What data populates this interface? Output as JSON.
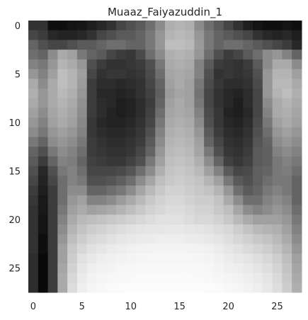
{
  "chart_data": {
    "type": "heatmap",
    "title": "Muaaz_Faiyazuddin_1",
    "xlabel": "",
    "ylabel": "",
    "colormap": "gray",
    "grid": false,
    "rows": 28,
    "cols": 28,
    "x_ticks": [
      0,
      5,
      10,
      15,
      20,
      25
    ],
    "y_ticks": [
      0,
      5,
      10,
      15,
      20,
      25
    ],
    "x_tick_labels": [
      "0",
      "5",
      "10",
      "15",
      "20",
      "25"
    ],
    "y_tick_labels": [
      "0",
      "5",
      "10",
      "15",
      "20",
      "25"
    ],
    "xlim": [
      -0.5,
      27.5
    ],
    "ylim": [
      27.5,
      -0.5
    ],
    "vmin": 0,
    "vmax": 255,
    "values": [
      [
        50,
        50,
        15,
        15,
        20,
        22,
        30,
        40,
        50,
        70,
        80,
        90,
        110,
        140,
        175,
        180,
        175,
        140,
        110,
        90,
        70,
        50,
        30,
        20,
        15,
        15,
        20,
        15
      ],
      [
        70,
        60,
        40,
        35,
        35,
        40,
        50,
        70,
        80,
        90,
        90,
        100,
        120,
        150,
        180,
        185,
        180,
        150,
        120,
        100,
        90,
        80,
        70,
        50,
        40,
        35,
        40,
        30
      ],
      [
        100,
        80,
        70,
        70,
        80,
        90,
        90,
        100,
        110,
        110,
        100,
        100,
        120,
        150,
        190,
        190,
        185,
        155,
        120,
        100,
        110,
        110,
        100,
        90,
        80,
        70,
        60,
        40
      ],
      [
        110,
        100,
        140,
        170,
        160,
        120,
        100,
        90,
        70,
        60,
        55,
        75,
        110,
        140,
        175,
        180,
        175,
        150,
        110,
        80,
        60,
        70,
        90,
        110,
        140,
        150,
        130,
        100
      ],
      [
        130,
        120,
        150,
        180,
        170,
        150,
        80,
        60,
        50,
        50,
        55,
        60,
        80,
        120,
        170,
        175,
        170,
        130,
        90,
        60,
        55,
        50,
        60,
        90,
        140,
        170,
        170,
        140
      ],
      [
        150,
        130,
        160,
        190,
        180,
        160,
        70,
        50,
        55,
        55,
        50,
        55,
        75,
        110,
        165,
        170,
        165,
        130,
        80,
        50,
        55,
        50,
        55,
        80,
        150,
        180,
        180,
        160
      ],
      [
        170,
        140,
        170,
        190,
        180,
        155,
        60,
        45,
        45,
        40,
        45,
        50,
        70,
        100,
        160,
        170,
        160,
        120,
        75,
        55,
        45,
        45,
        50,
        75,
        150,
        185,
        185,
        170
      ],
      [
        175,
        150,
        170,
        185,
        175,
        150,
        60,
        40,
        40,
        35,
        40,
        50,
        65,
        95,
        155,
        165,
        160,
        115,
        70,
        50,
        40,
        35,
        45,
        70,
        150,
        180,
        190,
        175
      ],
      [
        170,
        150,
        170,
        180,
        170,
        145,
        60,
        45,
        40,
        30,
        35,
        45,
        60,
        100,
        160,
        170,
        160,
        120,
        70,
        50,
        40,
        30,
        45,
        70,
        140,
        170,
        180,
        170
      ],
      [
        160,
        140,
        165,
        175,
        165,
        140,
        60,
        45,
        35,
        30,
        35,
        45,
        65,
        110,
        165,
        170,
        165,
        130,
        75,
        55,
        35,
        30,
        40,
        70,
        130,
        170,
        175,
        165
      ],
      [
        150,
        130,
        160,
        170,
        160,
        135,
        55,
        40,
        35,
        35,
        40,
        50,
        70,
        120,
        170,
        175,
        170,
        140,
        80,
        55,
        40,
        35,
        45,
        75,
        120,
        160,
        170,
        160
      ],
      [
        140,
        120,
        150,
        160,
        150,
        130,
        55,
        45,
        40,
        40,
        45,
        55,
        80,
        130,
        175,
        180,
        175,
        150,
        90,
        60,
        45,
        40,
        50,
        80,
        110,
        150,
        160,
        150
      ],
      [
        120,
        100,
        140,
        150,
        140,
        120,
        60,
        50,
        45,
        45,
        50,
        60,
        90,
        140,
        180,
        185,
        180,
        160,
        100,
        70,
        50,
        45,
        55,
        85,
        100,
        140,
        150,
        140
      ],
      [
        100,
        80,
        120,
        140,
        130,
        110,
        60,
        55,
        50,
        50,
        55,
        70,
        100,
        150,
        185,
        190,
        185,
        165,
        120,
        80,
        55,
        50,
        60,
        90,
        95,
        130,
        140,
        130
      ],
      [
        90,
        60,
        100,
        130,
        125,
        100,
        65,
        60,
        55,
        55,
        65,
        80,
        120,
        160,
        190,
        195,
        190,
        175,
        140,
        100,
        65,
        55,
        65,
        90,
        95,
        120,
        130,
        120
      ],
      [
        80,
        40,
        80,
        120,
        130,
        110,
        70,
        70,
        70,
        75,
        85,
        110,
        140,
        175,
        195,
        200,
        195,
        185,
        160,
        130,
        90,
        70,
        75,
        95,
        100,
        120,
        125,
        110
      ],
      [
        70,
        35,
        70,
        110,
        130,
        120,
        80,
        80,
        85,
        95,
        110,
        140,
        165,
        190,
        200,
        205,
        200,
        195,
        180,
        160,
        120,
        90,
        80,
        95,
        110,
        120,
        120,
        100
      ],
      [
        60,
        30,
        60,
        110,
        140,
        140,
        100,
        100,
        110,
        120,
        140,
        165,
        185,
        200,
        210,
        210,
        205,
        200,
        195,
        180,
        150,
        110,
        90,
        100,
        120,
        130,
        120,
        100
      ],
      [
        55,
        25,
        60,
        110,
        150,
        160,
        130,
        130,
        140,
        155,
        170,
        185,
        200,
        210,
        215,
        215,
        210,
        205,
        205,
        195,
        170,
        140,
        110,
        110,
        130,
        140,
        130,
        100
      ],
      [
        50,
        25,
        60,
        120,
        160,
        170,
        160,
        165,
        170,
        180,
        190,
        200,
        210,
        215,
        220,
        220,
        215,
        210,
        210,
        200,
        190,
        165,
        140,
        130,
        140,
        150,
        140,
        110
      ],
      [
        50,
        20,
        60,
        130,
        170,
        185,
        190,
        195,
        200,
        205,
        210,
        215,
        220,
        225,
        225,
        225,
        220,
        215,
        215,
        210,
        200,
        185,
        170,
        160,
        160,
        160,
        150,
        120
      ],
      [
        50,
        20,
        60,
        140,
        180,
        195,
        205,
        210,
        215,
        220,
        225,
        228,
        230,
        230,
        232,
        232,
        230,
        228,
        225,
        220,
        215,
        205,
        195,
        185,
        180,
        175,
        160,
        130
      ],
      [
        50,
        15,
        60,
        150,
        190,
        205,
        215,
        220,
        225,
        230,
        232,
        235,
        236,
        238,
        238,
        238,
        236,
        235,
        232,
        228,
        222,
        215,
        208,
        200,
        195,
        185,
        170,
        140
      ],
      [
        50,
        15,
        60,
        160,
        200,
        215,
        225,
        230,
        235,
        238,
        240,
        242,
        243,
        244,
        244,
        244,
        243,
        242,
        240,
        236,
        230,
        225,
        218,
        212,
        205,
        195,
        180,
        150
      ],
      [
        45,
        10,
        60,
        160,
        205,
        225,
        232,
        238,
        240,
        242,
        244,
        245,
        246,
        246,
        246,
        246,
        246,
        245,
        244,
        240,
        236,
        232,
        228,
        222,
        215,
        205,
        190,
        160
      ],
      [
        45,
        10,
        60,
        165,
        210,
        230,
        238,
        242,
        244,
        246,
        247,
        248,
        248,
        248,
        248,
        248,
        248,
        248,
        246,
        244,
        240,
        238,
        234,
        228,
        222,
        212,
        195,
        165
      ],
      [
        45,
        10,
        60,
        170,
        215,
        235,
        242,
        245,
        247,
        248,
        249,
        250,
        250,
        250,
        250,
        250,
        250,
        249,
        248,
        246,
        244,
        242,
        238,
        234,
        228,
        218,
        200,
        170
      ],
      [
        45,
        10,
        60,
        170,
        220,
        238,
        245,
        248,
        250,
        251,
        252,
        252,
        252,
        252,
        252,
        252,
        252,
        252,
        251,
        250,
        248,
        246,
        242,
        238,
        232,
        222,
        205,
        175
      ]
    ]
  }
}
